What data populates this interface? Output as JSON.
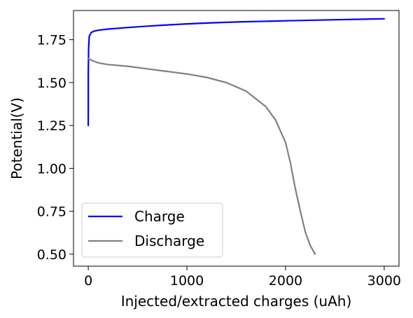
{
  "chart_data": {
    "type": "line",
    "title": "",
    "xlabel": "Injected/extracted charges (uAh)",
    "ylabel": "Potential(V)",
    "xlim": [
      -150,
      3150
    ],
    "ylim": [
      0.43,
      1.92
    ],
    "xticks": [
      0,
      1000,
      2000,
      3000
    ],
    "xtick_labels": [
      "0",
      "1000",
      "2000",
      "3000"
    ],
    "yticks": [
      0.5,
      0.75,
      1.0,
      1.25,
      1.5,
      1.75
    ],
    "ytick_labels": [
      "0.50",
      "0.75",
      "1.00",
      "1.25",
      "1.50",
      "1.75"
    ],
    "grid": false,
    "legend": "lower-left",
    "series": [
      {
        "name": "Charge",
        "color": "#0000ff",
        "x": [
          0,
          0,
          3,
          10,
          30,
          60,
          100,
          200,
          400,
          600,
          800,
          1000,
          1200,
          1500,
          2000,
          2500,
          3000
        ],
        "y": [
          1.25,
          1.55,
          1.7,
          1.77,
          1.792,
          1.8,
          1.805,
          1.812,
          1.821,
          1.829,
          1.836,
          1.842,
          1.847,
          1.853,
          1.86,
          1.866,
          1.872
        ]
      },
      {
        "name": "Discharge",
        "color": "#808080",
        "x": [
          0,
          30,
          100,
          200,
          400,
          600,
          800,
          1000,
          1200,
          1400,
          1600,
          1800,
          1900,
          2000,
          2050,
          2100,
          2150,
          2200,
          2250,
          2300
        ],
        "y": [
          1.64,
          1.63,
          1.615,
          1.605,
          1.595,
          1.58,
          1.565,
          1.55,
          1.53,
          1.5,
          1.45,
          1.36,
          1.28,
          1.15,
          1.03,
          0.88,
          0.75,
          0.63,
          0.55,
          0.5
        ]
      }
    ]
  }
}
